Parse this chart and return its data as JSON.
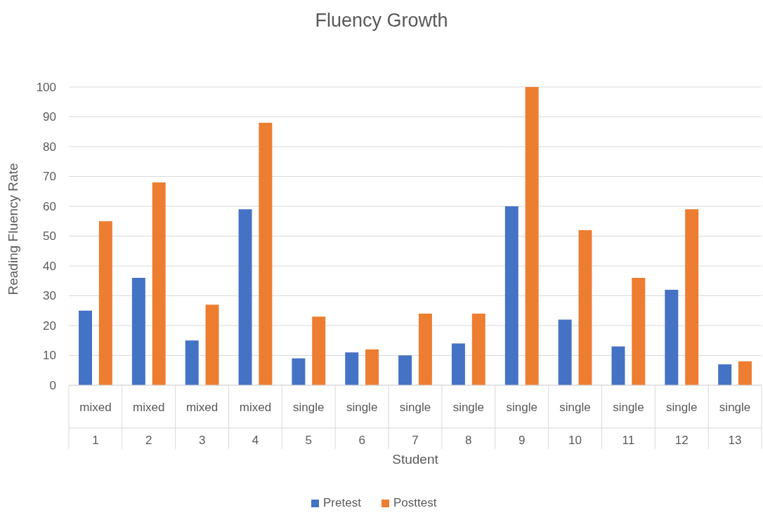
{
  "chart_data": {
    "type": "bar",
    "title": "Fluency Growth",
    "xlabel": "Student",
    "ylabel": "Reading Fluency Rate",
    "categories": [
      "mixed\n1",
      "mixed\n2",
      "mixed\n3",
      "mixed\n4",
      "single\n5",
      "single\n6",
      "single\n7",
      "single\n8",
      "single\n9",
      "single\n10",
      "single\n11",
      "single\n12",
      "single\n13"
    ],
    "series": [
      {
        "name": "Pretest",
        "color": "#4472c4",
        "values": [
          25,
          36,
          15,
          59,
          9,
          11,
          10,
          14,
          60,
          22,
          13,
          32,
          7
        ]
      },
      {
        "name": "Posttest",
        "color": "#ed7d31",
        "values": [
          55,
          68,
          27,
          88,
          23,
          12,
          24,
          24,
          100,
          52,
          36,
          59,
          8
        ]
      }
    ],
    "ylim": [
      0,
      100
    ],
    "yticks": [
      0,
      10,
      20,
      30,
      40,
      50,
      60,
      70,
      80,
      90,
      100
    ],
    "grid": "y",
    "legend": "bottom"
  }
}
